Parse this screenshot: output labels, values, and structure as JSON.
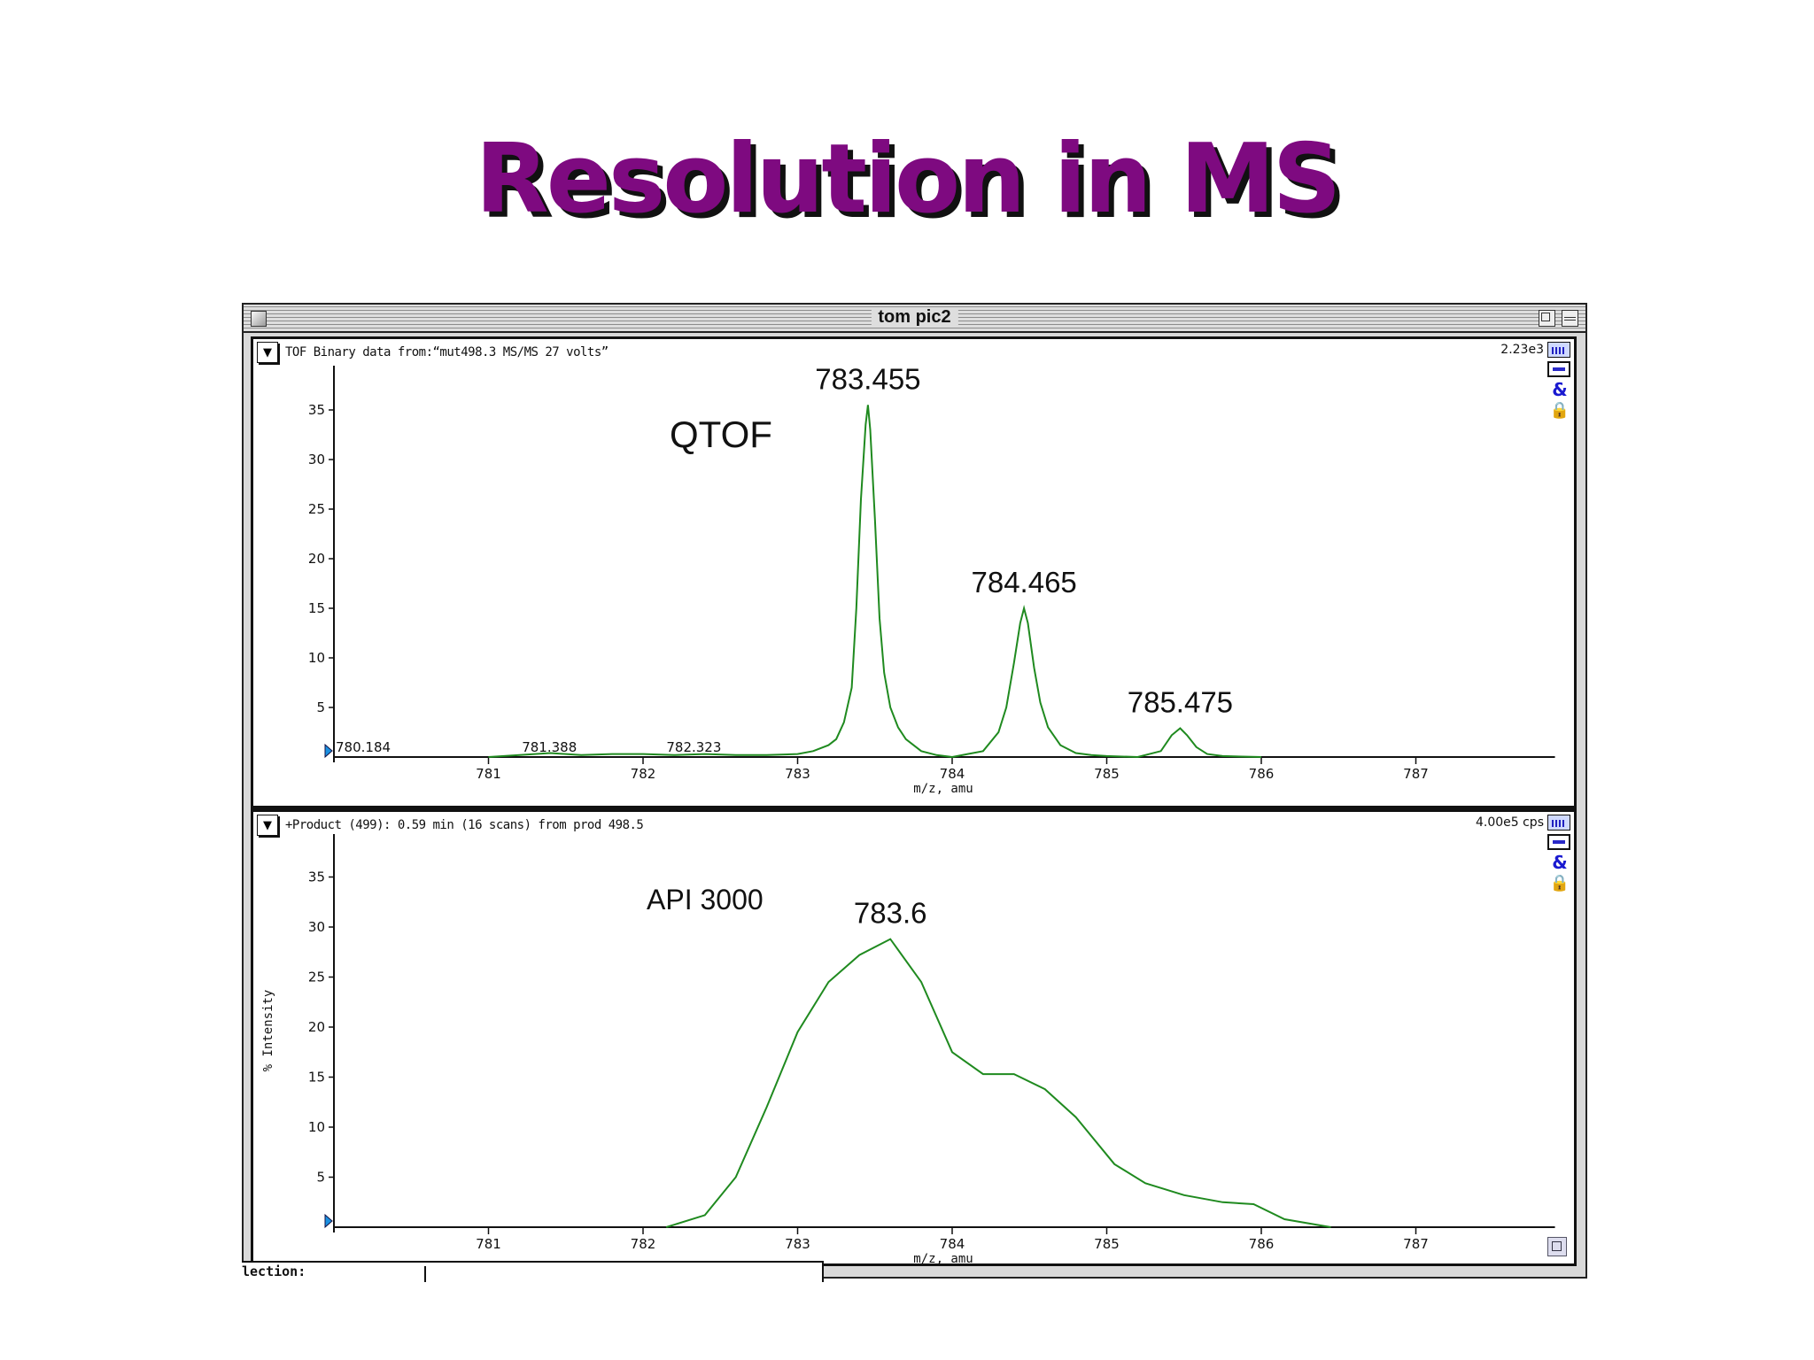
{
  "slide": {
    "title": "Resolution in MS"
  },
  "window": {
    "title": "tom pic2",
    "status_label": "lection:"
  },
  "panels": {
    "top": {
      "description": "TOF Binary data from:“mut498.3 MS/MS 27 volts”",
      "scale": "2.23e3",
      "instrument_label": "QTOF",
      "x_axis_label": "m/z, amu",
      "icons": [
        "chart-view-icon",
        "minus-icon",
        "ampersand-icon",
        "lock-icon"
      ]
    },
    "bottom": {
      "description": "+Product (499): 0.59 min (16 scans) from prod 498.5",
      "scale": "4.00e5 cps",
      "instrument_label": "API 3000",
      "x_axis_label": "m/z, amu",
      "y_axis_label": "% Intensity",
      "icons": [
        "chart-view-icon",
        "minus-icon",
        "ampersand-icon",
        "lock-icon"
      ]
    }
  },
  "colors": {
    "title": "#7e0a80",
    "trace": "#1f8a1f",
    "marker": "#1a8fe0"
  },
  "chart_data": [
    {
      "type": "line",
      "title": "QTOF",
      "subtitle": "TOF Binary data from:“mut498.3 MS/MS 27 volts”",
      "xlabel": "m/z, amu",
      "ylabel": "",
      "xlim": [
        780.0,
        787.9
      ],
      "ylim": [
        0,
        39
      ],
      "x_ticks": [
        781,
        782,
        783,
        784,
        785,
        786,
        787
      ],
      "y_ticks": [
        5,
        10,
        15,
        20,
        25,
        30,
        35
      ],
      "grid": false,
      "scale_max": "2.23e3",
      "annotations": [
        {
          "text": "783.455",
          "x": 783.455,
          "y": 35.5,
          "size": "large"
        },
        {
          "text": "784.465",
          "x": 784.465,
          "y": 15.0,
          "size": "large"
        },
        {
          "text": "785.475",
          "x": 785.475,
          "y": 2.9,
          "size": "large"
        },
        {
          "text": "781.388",
          "x": 781.388,
          "y": 0.3,
          "size": "small"
        },
        {
          "text": "782.323",
          "x": 782.323,
          "y": 0.3,
          "size": "small"
        },
        {
          "text": "780.184",
          "x": 780.184,
          "y": 0.1,
          "size": "small"
        }
      ],
      "series": [
        {
          "name": "QTOF",
          "x": [
            781.0,
            781.2,
            781.4,
            781.6,
            781.8,
            782.0,
            782.2,
            782.4,
            782.6,
            782.8,
            783.0,
            783.1,
            783.2,
            783.25,
            783.3,
            783.35,
            783.38,
            783.41,
            783.44,
            783.455,
            783.47,
            783.5,
            783.53,
            783.56,
            783.6,
            783.65,
            783.7,
            783.8,
            783.9,
            784.0,
            784.1,
            784.2,
            784.3,
            784.35,
            784.4,
            784.44,
            784.465,
            784.49,
            784.53,
            784.57,
            784.62,
            784.7,
            784.8,
            784.9,
            785.0,
            785.2,
            785.35,
            785.42,
            785.475,
            785.52,
            785.58,
            785.65,
            785.75,
            786.0
          ],
          "values": [
            0.0,
            0.2,
            0.4,
            0.2,
            0.3,
            0.3,
            0.2,
            0.3,
            0.2,
            0.2,
            0.3,
            0.6,
            1.2,
            1.8,
            3.5,
            7.0,
            15.0,
            26.0,
            33.5,
            35.5,
            33.0,
            24.0,
            14.0,
            8.5,
            5.0,
            3.0,
            1.8,
            0.6,
            0.2,
            0.0,
            0.3,
            0.6,
            2.5,
            5.0,
            9.5,
            13.5,
            15.0,
            13.5,
            9.0,
            5.5,
            3.0,
            1.2,
            0.4,
            0.2,
            0.1,
            0.0,
            0.6,
            2.2,
            2.9,
            2.2,
            1.0,
            0.3,
            0.1,
            0.0
          ]
        }
      ]
    },
    {
      "type": "line",
      "title": "API 3000",
      "subtitle": "+Product (499): 0.59 min (16 scans) from prod 498.5",
      "xlabel": "m/z, amu",
      "ylabel": "% Intensity",
      "xlim": [
        780.0,
        787.9
      ],
      "ylim": [
        0,
        39
      ],
      "x_ticks": [
        781,
        782,
        783,
        784,
        785,
        786,
        787
      ],
      "y_ticks": [
        5,
        10,
        15,
        20,
        25,
        30,
        35
      ],
      "grid": false,
      "scale_max": "4.00e5 cps",
      "annotations": [
        {
          "text": "783.6",
          "x": 783.6,
          "y": 28.8,
          "size": "large"
        }
      ],
      "series": [
        {
          "name": "API 3000",
          "x": [
            782.15,
            782.4,
            782.6,
            782.8,
            783.0,
            783.2,
            783.4,
            783.6,
            783.8,
            784.0,
            784.2,
            784.4,
            784.6,
            784.8,
            785.05,
            785.25,
            785.5,
            785.75,
            785.95,
            786.15,
            786.45
          ],
          "values": [
            0.0,
            1.2,
            5.0,
            12.0,
            19.5,
            24.5,
            27.2,
            28.8,
            24.5,
            17.5,
            15.3,
            15.3,
            13.8,
            11.0,
            6.3,
            4.4,
            3.2,
            2.5,
            2.3,
            0.8,
            0.0
          ]
        }
      ]
    }
  ]
}
